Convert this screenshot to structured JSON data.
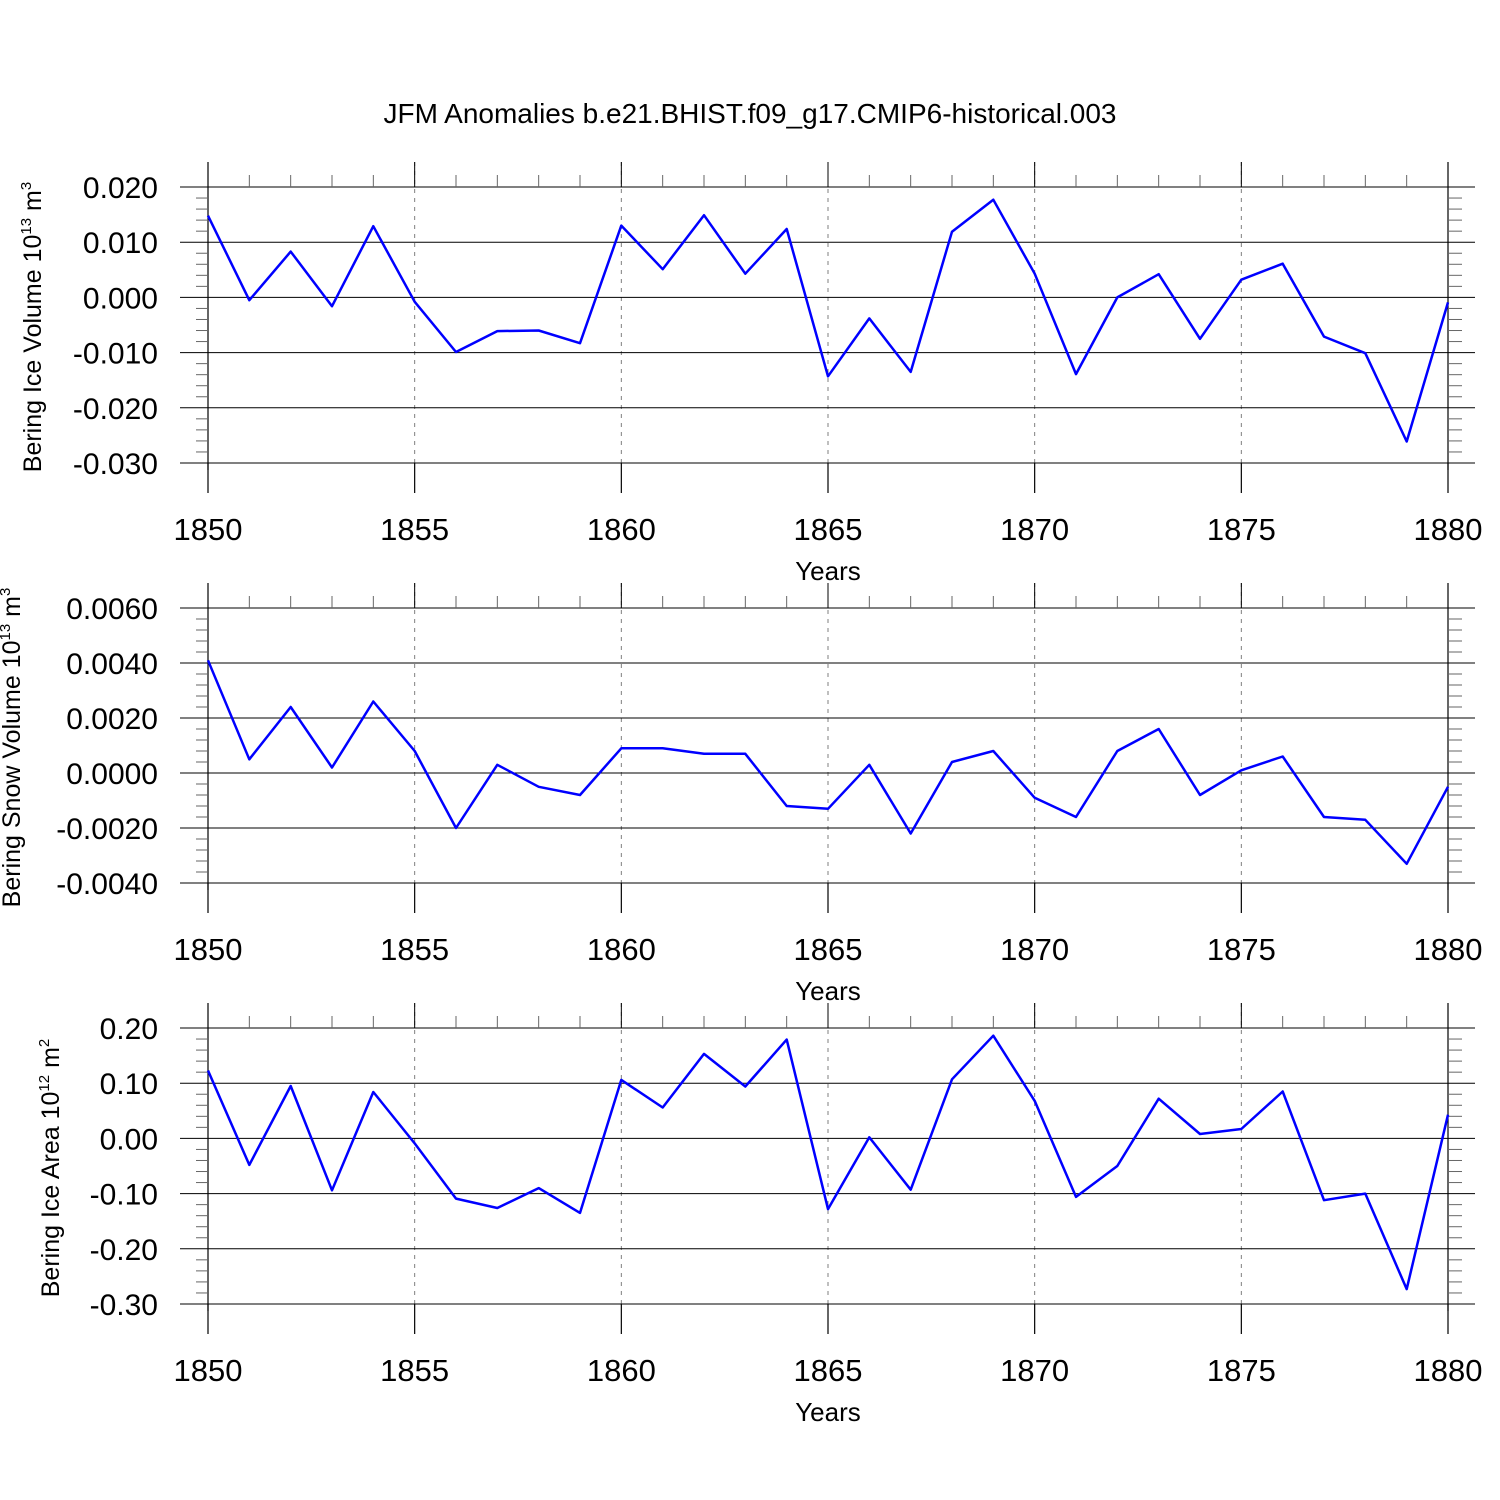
{
  "figure_title": "JFM Anomalies b.e21.BHIST.f09_g17.CMIP6-historical.003",
  "colors": {
    "line": "#0000ff",
    "axis": "#000000",
    "grid": "#7f7f7f"
  },
  "chart_data": [
    {
      "type": "line",
      "xlabel": "Years",
      "ylabel": "Bering Ice Volume 10",
      "ylabel_sup": "13",
      "ylabel_unit": " m",
      "ylabel_unit_sup": "3",
      "xlim": [
        1850,
        1880
      ],
      "ylim": [
        -0.03,
        0.02
      ],
      "x_ticks": [
        "1850",
        "1855",
        "1860",
        "1865",
        "1870",
        "1875",
        "1880"
      ],
      "y_ticks": [
        "0.020",
        "0.010",
        "0.000",
        "-0.010",
        "-0.020",
        "-0.030"
      ],
      "y_tick_values": [
        0.02,
        0.01,
        0.0,
        -0.01,
        -0.02,
        -0.03
      ],
      "grid": "vertical dashed at major x ticks",
      "series": [
        {
          "x": [
            1850,
            1851,
            1852,
            1853,
            1854,
            1855,
            1856,
            1857,
            1858,
            1859,
            1860,
            1861,
            1862,
            1863,
            1864,
            1865,
            1866,
            1867,
            1868,
            1869,
            1870,
            1871,
            1872,
            1873,
            1874,
            1875,
            1876,
            1877,
            1878,
            1879,
            1880
          ],
          "values": [
            0.0148,
            -0.0005,
            0.0083,
            -0.0016,
            0.0129,
            -0.0008,
            -0.0099,
            -0.0061,
            -0.006,
            -0.0083,
            0.013,
            0.0051,
            0.0149,
            0.0043,
            0.0124,
            -0.0143,
            -0.0038,
            -0.0135,
            0.0119,
            0.0177,
            0.0043,
            -0.0139,
            0.0,
            0.0042,
            -0.0075,
            0.0032,
            0.0061,
            -0.0071,
            -0.0101,
            -0.0261,
            -0.0009
          ]
        }
      ]
    },
    {
      "type": "line",
      "xlabel": "Years",
      "ylabel": "Bering Snow Volume 10",
      "ylabel_sup": "13",
      "ylabel_unit": " m",
      "ylabel_unit_sup": "3",
      "xlim": [
        1850,
        1880
      ],
      "ylim": [
        -0.004,
        0.006
      ],
      "x_ticks": [
        "1850",
        "1855",
        "1860",
        "1865",
        "1870",
        "1875",
        "1880"
      ],
      "y_ticks": [
        "0.0060",
        "0.0040",
        "0.0020",
        "0.0000",
        "-0.0020",
        "-0.0040"
      ],
      "y_tick_values": [
        0.006,
        0.004,
        0.002,
        0.0,
        -0.002,
        -0.004
      ],
      "grid": "vertical dashed at major x ticks",
      "series": [
        {
          "x": [
            1850,
            1851,
            1852,
            1853,
            1854,
            1855,
            1856,
            1857,
            1858,
            1859,
            1860,
            1861,
            1862,
            1863,
            1864,
            1865,
            1866,
            1867,
            1868,
            1869,
            1870,
            1871,
            1872,
            1873,
            1874,
            1875,
            1876,
            1877,
            1878,
            1879,
            1880
          ],
          "values": [
            0.0041,
            0.0005,
            0.0024,
            0.0002,
            0.0026,
            0.0008,
            -0.002,
            0.0003,
            -0.0005,
            -0.0008,
            0.0009,
            0.0009,
            0.0007,
            0.0007,
            -0.0012,
            -0.0013,
            0.0003,
            -0.0022,
            0.0004,
            0.0008,
            -0.0009,
            -0.0016,
            0.0008,
            0.0016,
            -0.0008,
            0.0001,
            0.0006,
            -0.0016,
            -0.0017,
            -0.0033,
            -0.0005
          ]
        }
      ]
    },
    {
      "type": "line",
      "xlabel": "Years",
      "ylabel": "Bering Ice Area 10",
      "ylabel_sup": "12",
      "ylabel_unit": " m",
      "ylabel_unit_sup": "2",
      "xlim": [
        1850,
        1880
      ],
      "ylim": [
        -0.3,
        0.2
      ],
      "x_ticks": [
        "1850",
        "1855",
        "1860",
        "1865",
        "1870",
        "1875",
        "1880"
      ],
      "y_ticks": [
        "0.20",
        "0.10",
        "0.00",
        "-0.10",
        "-0.20",
        "-0.30"
      ],
      "y_tick_values": [
        0.2,
        0.1,
        0.0,
        -0.1,
        -0.2,
        -0.3
      ],
      "grid": "vertical dashed at major x ticks",
      "series": [
        {
          "x": [
            1850,
            1851,
            1852,
            1853,
            1854,
            1855,
            1856,
            1857,
            1858,
            1859,
            1860,
            1861,
            1862,
            1863,
            1864,
            1865,
            1866,
            1867,
            1868,
            1869,
            1870,
            1871,
            1872,
            1873,
            1874,
            1875,
            1876,
            1877,
            1878,
            1879,
            1880
          ],
          "values": [
            0.123,
            -0.048,
            0.095,
            -0.094,
            0.084,
            -0.009,
            -0.109,
            -0.126,
            -0.09,
            -0.135,
            0.106,
            0.056,
            0.153,
            0.094,
            0.179,
            -0.128,
            0.002,
            -0.093,
            0.107,
            0.186,
            0.068,
            -0.106,
            -0.05,
            0.072,
            0.008,
            0.017,
            0.085,
            -0.112,
            -0.1,
            -0.273,
            0.043
          ]
        }
      ]
    }
  ]
}
